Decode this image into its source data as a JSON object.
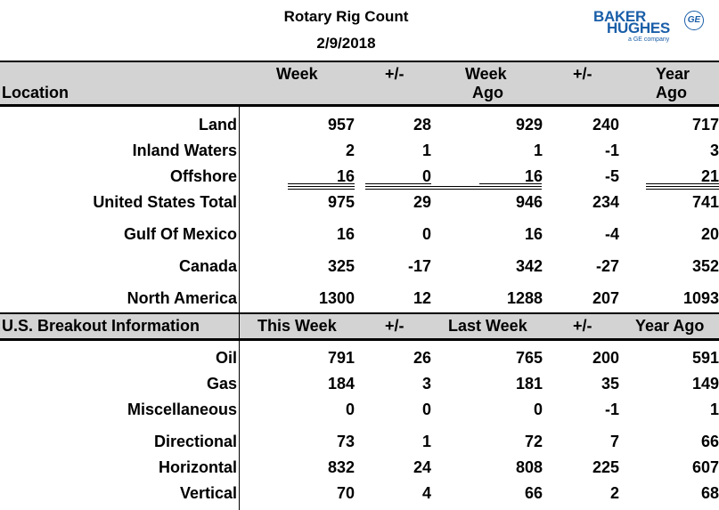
{
  "header": {
    "title": "Rotary Rig Count",
    "date": "2/9/2018"
  },
  "logo": {
    "line1": "BAKER",
    "line2": "HUGHES",
    "sub": "a GE company",
    "mark": "GE",
    "color": "#1a5ea8"
  },
  "table1": {
    "col_location": "Location",
    "col_week": "Week",
    "col_pm1": "+/-",
    "col_week_ago_1": "Week",
    "col_week_ago_2": "Ago",
    "col_pm2": "+/-",
    "col_year_ago_1": "Year",
    "col_year_ago_2": "Ago",
    "rows": [
      {
        "label": "Land",
        "week": "957",
        "pm1": "28",
        "ago": "929",
        "pm2": "240",
        "year": "717"
      },
      {
        "label": "Inland Waters",
        "week": "2",
        "pm1": "1",
        "ago": "1",
        "pm2": "-1",
        "year": "3"
      },
      {
        "label": "Offshore",
        "week": "16",
        "pm1": "0",
        "ago": "16",
        "pm2": "-5",
        "year": "21"
      },
      {
        "label": "United States Total",
        "week": "975",
        "pm1": "29",
        "ago": "946",
        "pm2": "234",
        "year": "741"
      },
      {
        "label": "Gulf Of Mexico",
        "week": "16",
        "pm1": "0",
        "ago": "16",
        "pm2": "-4",
        "year": "20"
      },
      {
        "label": "Canada",
        "week": "325",
        "pm1": "-17",
        "ago": "342",
        "pm2": "-27",
        "year": "352"
      },
      {
        "label": "North America",
        "week": "1300",
        "pm1": "12",
        "ago": "1288",
        "pm2": "207",
        "year": "1093"
      }
    ]
  },
  "table2": {
    "col_section": "U.S. Breakout Information",
    "col_this_week": "This Week",
    "col_pm1": "+/-",
    "col_last_week": "Last Week",
    "col_pm2": "+/-",
    "col_year_ago": "Year Ago",
    "rows": [
      {
        "label": "Oil",
        "week": "791",
        "pm1": "26",
        "ago": "765",
        "pm2": "200",
        "year": "591"
      },
      {
        "label": "Gas",
        "week": "184",
        "pm1": "3",
        "ago": "181",
        "pm2": "35",
        "year": "149"
      },
      {
        "label": "Miscellaneous",
        "week": "0",
        "pm1": "0",
        "ago": "0",
        "pm2": "-1",
        "year": "1"
      },
      {
        "label": "Directional",
        "week": "73",
        "pm1": "1",
        "ago": "72",
        "pm2": "7",
        "year": "66"
      },
      {
        "label": "Horizontal",
        "week": "832",
        "pm1": "24",
        "ago": "808",
        "pm2": "225",
        "year": "607"
      },
      {
        "label": "Vertical",
        "week": "70",
        "pm1": "4",
        "ago": "66",
        "pm2": "2",
        "year": "68"
      }
    ]
  }
}
